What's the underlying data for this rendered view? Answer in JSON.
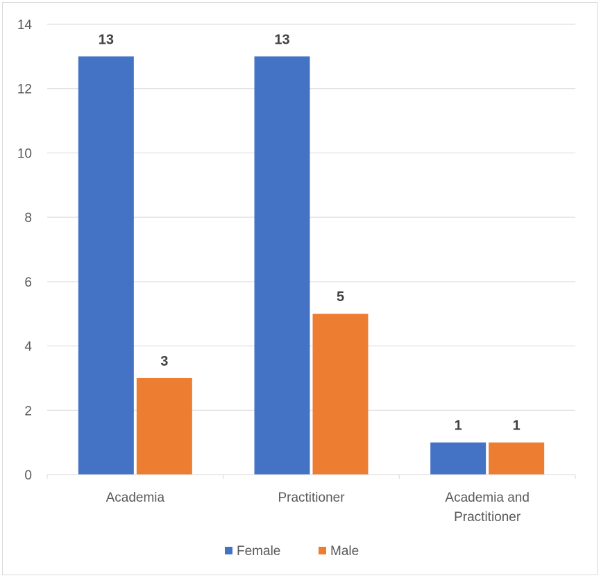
{
  "chart_data": {
    "type": "bar",
    "categories": [
      "Academia",
      "Practitioner",
      "Academia and Practitioner"
    ],
    "category_label_lines": [
      [
        "Academia"
      ],
      [
        "Practitioner"
      ],
      [
        "Academia and",
        "Practitioner"
      ]
    ],
    "series": [
      {
        "name": "Female",
        "values": [
          13,
          13,
          1
        ],
        "color": "#4472C4"
      },
      {
        "name": "Male",
        "values": [
          3,
          5,
          1
        ],
        "color": "#ED7D31"
      }
    ],
    "ylim": [
      0,
      14
    ],
    "yticks": [
      0,
      2,
      4,
      6,
      8,
      10,
      12,
      14
    ],
    "grid": true,
    "legend_position": "bottom",
    "data_labels": true,
    "title": "",
    "xlabel": "",
    "ylabel": ""
  }
}
